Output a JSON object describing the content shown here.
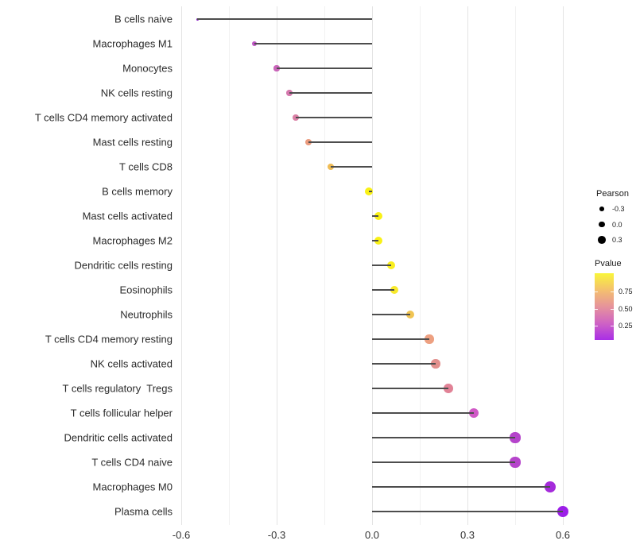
{
  "chart_data": {
    "type": "lollipop",
    "orientation": "horizontal",
    "title": "",
    "xlabel": "",
    "ylabel": "",
    "grid": "vertical-only",
    "x_axis": {
      "major_ticks": [
        {
          "label": "-0.6",
          "value": -0.6
        },
        {
          "label": "-0.3",
          "value": -0.3
        },
        {
          "label": "0.0",
          "value": 0.0
        },
        {
          "label": "0.3",
          "value": 0.3
        },
        {
          "label": "0.6",
          "value": 0.6
        }
      ],
      "minor_tick_values": [
        -0.45,
        -0.15,
        0.15,
        0.45
      ],
      "range": [
        -0.62,
        0.66
      ]
    },
    "points": [
      {
        "label": "B cells naive",
        "pearson": -0.55,
        "pvalue_approx": 0.01,
        "color": "#8a1fc8"
      },
      {
        "label": "Macrophages M1",
        "pearson": -0.37,
        "pvalue_approx": 0.25,
        "color": "#bd56c3"
      },
      {
        "label": "Monocytes",
        "pearson": -0.3,
        "pvalue_approx": 0.32,
        "color": "#c964b9"
      },
      {
        "label": "NK cells resting",
        "pearson": -0.26,
        "pvalue_approx": 0.38,
        "color": "#d578ad"
      },
      {
        "label": "T cells CD4 memory activated",
        "pearson": -0.24,
        "pvalue_approx": 0.42,
        "color": "#da7fa5"
      },
      {
        "label": "Mast cells resting",
        "pearson": -0.2,
        "pvalue_approx": 0.62,
        "color": "#eb9b7e"
      },
      {
        "label": "T cells CD8",
        "pearson": -0.13,
        "pvalue_approx": 0.78,
        "color": "#f0bc55"
      },
      {
        "label": "B cells memory",
        "pearson": -0.01,
        "pvalue_approx": 0.97,
        "color": "#f9f116"
      },
      {
        "label": "Mast cells activated",
        "pearson": 0.02,
        "pvalue_approx": 0.96,
        "color": "#f9f116"
      },
      {
        "label": "Macrophages M2",
        "pearson": 0.02,
        "pvalue_approx": 0.96,
        "color": "#f9f116"
      },
      {
        "label": "Dendritic cells resting",
        "pearson": 0.06,
        "pvalue_approx": 0.93,
        "color": "#f9ee1e"
      },
      {
        "label": "Eosinophils",
        "pearson": 0.07,
        "pvalue_approx": 0.91,
        "color": "#f8e92b"
      },
      {
        "label": "Neutrophils",
        "pearson": 0.12,
        "pvalue_approx": 0.8,
        "color": "#f0c453"
      },
      {
        "label": "T cells CD4 memory resting",
        "pearson": 0.18,
        "pvalue_approx": 0.65,
        "color": "#eda081"
      },
      {
        "label": "NK cells activated",
        "pearson": 0.2,
        "pvalue_approx": 0.55,
        "color": "#e2908d"
      },
      {
        "label": "T cells regulatory  Tregs",
        "pearson": 0.24,
        "pvalue_approx": 0.48,
        "color": "#e18296"
      },
      {
        "label": "T cells follicular helper",
        "pearson": 0.32,
        "pvalue_approx": 0.28,
        "color": "#d059c6"
      },
      {
        "label": "Dendritic cells activated",
        "pearson": 0.45,
        "pvalue_approx": 0.17,
        "color": "#b544cb"
      },
      {
        "label": "T cells CD4 naive",
        "pearson": 0.45,
        "pvalue_approx": 0.17,
        "color": "#b544cb"
      },
      {
        "label": "Macrophages M0",
        "pearson": 0.56,
        "pvalue_approx": 0.08,
        "color": "#a52bdb"
      },
      {
        "label": "Plasma cells",
        "pearson": 0.6,
        "pvalue_approx": 0.04,
        "color": "#9c1fe8"
      }
    ],
    "legend_size": {
      "title": "Pearson",
      "entries": [
        {
          "label": "-0.3",
          "value": -0.3
        },
        {
          "label": "0.0",
          "value": 0.0
        },
        {
          "label": "0.3",
          "value": 0.3
        }
      ],
      "key_color": "#000000"
    },
    "legend_color": {
      "title": "Pvalue",
      "tick_labels": [
        {
          "label": "0.75",
          "value": 0.75
        },
        {
          "label": "0.50",
          "value": 0.5
        },
        {
          "label": "0.25",
          "value": 0.25
        }
      ],
      "gradient_top_to_bottom": [
        "#f9f53b",
        "#f4c06e",
        "#e6939b",
        "#cf63c4",
        "#a92ee6"
      ]
    },
    "style": {
      "stem_color": "#4d4d4d",
      "major_grid_color": "#e3e3e3",
      "minor_grid_color": "#f1f1f1"
    }
  }
}
